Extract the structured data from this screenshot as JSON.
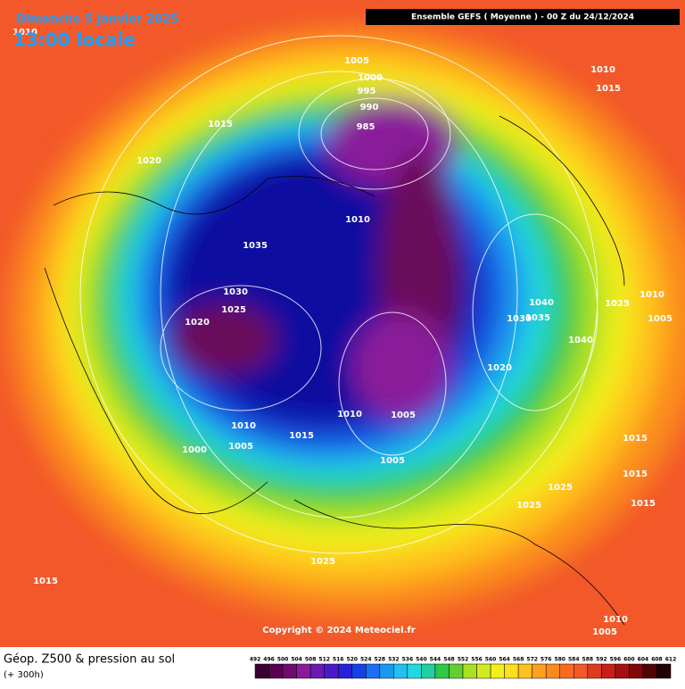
{
  "header": {
    "date": "Dimanche 5 janvier 2025",
    "time": "13:00 locale",
    "model": "Ensemble GEFS  ( Moyenne )  -  00 Z du 24/12/2024"
  },
  "copyright": "Copyright © 2024 Meteociel.fr",
  "footer": {
    "title": "Géop. Z500 & pression au sol",
    "lead": "(+ 300h)"
  },
  "isobar_labels": [
    1005,
    1000,
    995,
    990,
    985,
    1015,
    1020,
    1010,
    1035,
    1030,
    1025,
    1020,
    1010,
    1005,
    1000,
    1015,
    1010,
    1005,
    1005,
    1020,
    1040,
    1035,
    1030,
    1040,
    1025,
    1010,
    1005,
    1015,
    1015,
    1025,
    1025,
    1015,
    1025,
    1015,
    1010,
    1005,
    1010,
    1015,
    1010
  ],
  "scale_labels": [
    492,
    496,
    500,
    504,
    508,
    512,
    516,
    520,
    524,
    528,
    532,
    536,
    540,
    544,
    548,
    552,
    556,
    560,
    564,
    568,
    572,
    576,
    580,
    584,
    588,
    592,
    596,
    600,
    604,
    608,
    612
  ]
}
